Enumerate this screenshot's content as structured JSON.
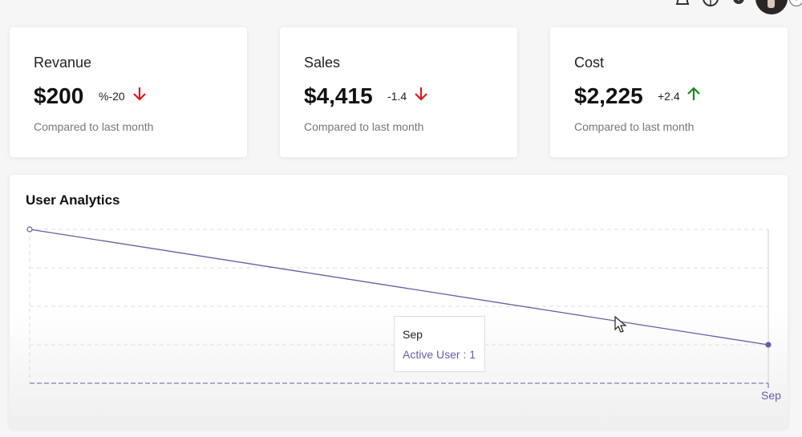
{
  "header": {
    "icons": [
      "bell-icon",
      "globe-icon",
      "settings-icon"
    ],
    "info_glyph": "i"
  },
  "cards": [
    {
      "title": "Revanue",
      "value": "$200",
      "change": "%-20",
      "trend": "down",
      "subtitle": "Compared to last month"
    },
    {
      "title": "Sales",
      "value": "$4,415",
      "change": "-1.4",
      "trend": "down",
      "subtitle": "Compared to last month"
    },
    {
      "title": "Cost",
      "value": "$2,225",
      "change": "+2.4",
      "trend": "up",
      "subtitle": "Compared to last month"
    }
  ],
  "colors": {
    "down": "#e0191a",
    "up": "#1a8a1a",
    "line": "#6a5aa8",
    "grid": "#dddddd"
  },
  "analytics": {
    "title": "User Analytics",
    "tooltip": {
      "label": "Sep",
      "series": "Active User",
      "separator": " : ",
      "value": "1"
    }
  },
  "chart_data": {
    "type": "line",
    "title": "User Analytics",
    "x": [
      "",
      "Sep"
    ],
    "series": [
      {
        "name": "Active User",
        "values": [
          4,
          1
        ]
      }
    ],
    "ylim": [
      0,
      4
    ],
    "xlabel": "",
    "ylabel": "",
    "grid": true,
    "tick_labels_x": [
      "Sep"
    ]
  }
}
